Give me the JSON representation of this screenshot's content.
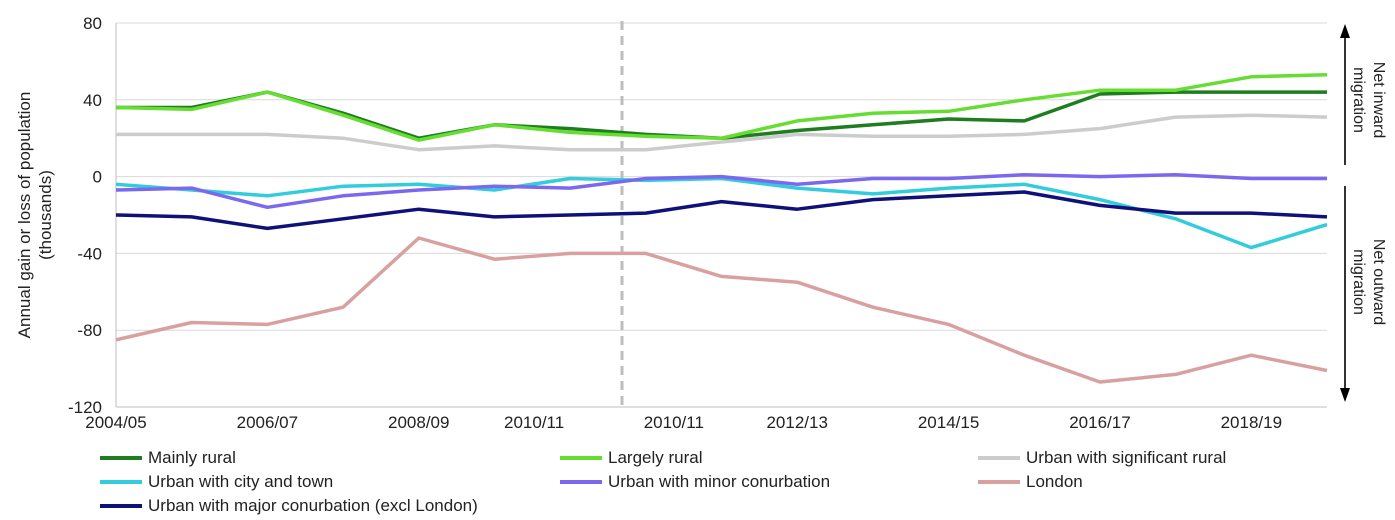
{
  "chart_data": {
    "type": "line",
    "ylabel": "Annual gain or loss of population (thousands)",
    "xlabel": "",
    "ylim": [
      -120,
      80
    ],
    "yticks": [
      80,
      40,
      0,
      -40,
      -80,
      -120
    ],
    "grid": true,
    "legend_position": "bottom",
    "x_tick_labels": [
      "2004/05",
      "2006/07",
      "2008/09",
      "2010/11",
      "2010/11",
      "2012/13",
      "2014/15",
      "2016/17",
      "2018/19"
    ],
    "break_after_index": 7,
    "side_labels": {
      "top": "Net inward migration",
      "bottom": "Net outward migration"
    },
    "series": [
      {
        "name": "Mainly rural",
        "color": "#1e7d1e",
        "values": [
          36,
          36,
          44,
          33,
          20,
          27,
          25,
          22,
          20,
          24,
          27,
          30,
          29,
          43,
          44,
          44,
          44
        ]
      },
      {
        "name": "Largely rural",
        "color": "#66dd33",
        "values": [
          36,
          35,
          44,
          32,
          19,
          27,
          23,
          21,
          20,
          29,
          33,
          34,
          40,
          45,
          45,
          52,
          53
        ]
      },
      {
        "name": "Urban with significant rural",
        "color": "#cccccc",
        "values": [
          22,
          22,
          22,
          20,
          14,
          16,
          14,
          14,
          18,
          22,
          21,
          21,
          22,
          25,
          31,
          32,
          31
        ]
      },
      {
        "name": "Urban with city and town",
        "color": "#33ccdd",
        "values": [
          -4,
          -7,
          -10,
          -5,
          -4,
          -7,
          -1,
          -2,
          -1,
          -6,
          -9,
          -6,
          -4,
          -12,
          -22,
          -37,
          -25
        ]
      },
      {
        "name": "Urban with minor conurbation",
        "color": "#7b68ee",
        "values": [
          -7,
          -6,
          -16,
          -10,
          -7,
          -5,
          -6,
          -1,
          0,
          -4,
          -1,
          -1,
          1,
          0,
          1,
          -1,
          -1
        ]
      },
      {
        "name": "London",
        "color": "#d9a0a0",
        "values": [
          -85,
          -76,
          -77,
          -68,
          -32,
          -43,
          -40,
          -40,
          -52,
          -55,
          -68,
          -77,
          -93,
          -107,
          -103,
          -93,
          -101
        ]
      },
      {
        "name": "Urban with major conurbation (excl London)",
        "color": "#10107a",
        "values": [
          -20,
          -21,
          -27,
          -22,
          -17,
          -21,
          -20,
          -19,
          -13,
          -17,
          -12,
          -10,
          -8,
          -15,
          -19,
          -19,
          -21
        ]
      }
    ]
  }
}
